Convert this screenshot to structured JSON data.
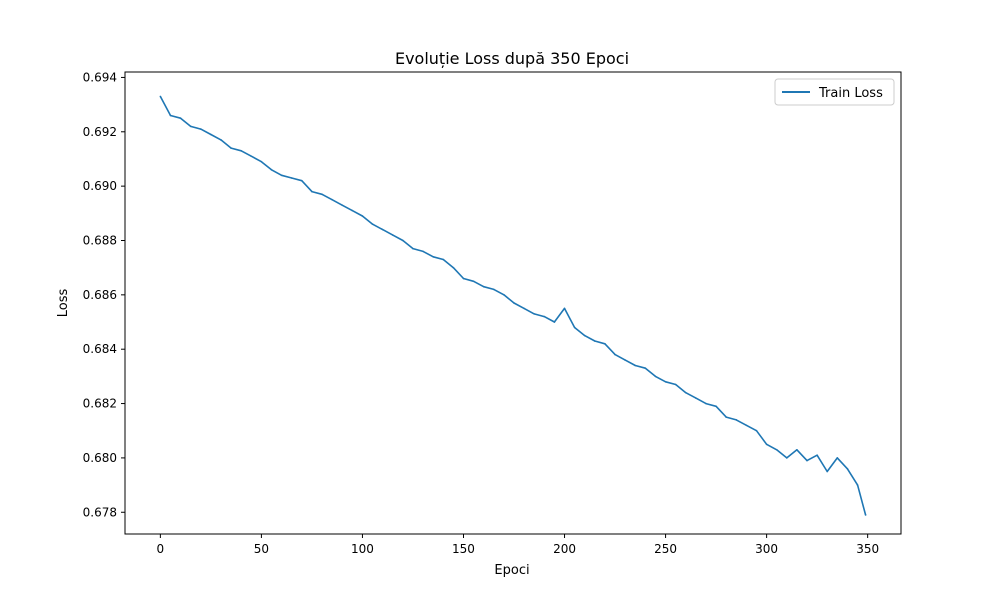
{
  "chart_data": {
    "type": "line",
    "title": "Evoluție Loss după 350 Epoci",
    "xlabel": "Epoci",
    "ylabel": "Loss",
    "xlim": [
      -17.5,
      366.5
    ],
    "ylim": [
      0.6772,
      0.6942
    ],
    "xticks": [
      0,
      50,
      100,
      150,
      200,
      250,
      300,
      350
    ],
    "yticks": [
      0.678,
      0.68,
      0.682,
      0.684,
      0.686,
      0.688,
      0.69,
      0.692,
      0.694
    ],
    "ytick_labels": [
      "0.678",
      "0.680",
      "0.682",
      "0.684",
      "0.686",
      "0.688",
      "0.690",
      "0.692",
      "0.694"
    ],
    "legend_position": "top-right",
    "grid": false,
    "series": [
      {
        "name": "Train Loss",
        "color": "#1f77b4",
        "x": [
          0,
          5,
          10,
          15,
          20,
          25,
          30,
          35,
          40,
          45,
          50,
          55,
          60,
          65,
          70,
          75,
          80,
          85,
          90,
          95,
          100,
          105,
          110,
          115,
          120,
          125,
          130,
          135,
          140,
          145,
          150,
          155,
          160,
          165,
          170,
          175,
          180,
          185,
          190,
          195,
          200,
          205,
          210,
          215,
          220,
          225,
          230,
          235,
          240,
          245,
          250,
          255,
          260,
          265,
          270,
          275,
          280,
          285,
          290,
          295,
          300,
          305,
          310,
          315,
          320,
          325,
          330,
          335,
          340,
          345,
          349
        ],
        "values": [
          0.6933,
          0.6926,
          0.6925,
          0.6922,
          0.6921,
          0.6919,
          0.6917,
          0.6914,
          0.6913,
          0.6911,
          0.6909,
          0.6906,
          0.6904,
          0.6903,
          0.6902,
          0.6898,
          0.6897,
          0.6895,
          0.6893,
          0.6891,
          0.6889,
          0.6886,
          0.6884,
          0.6882,
          0.688,
          0.6877,
          0.6876,
          0.6874,
          0.6873,
          0.687,
          0.6866,
          0.6865,
          0.6863,
          0.6862,
          0.686,
          0.6857,
          0.6855,
          0.6853,
          0.6852,
          0.685,
          0.6855,
          0.6848,
          0.6845,
          0.6843,
          0.6842,
          0.6838,
          0.6836,
          0.6834,
          0.6833,
          0.683,
          0.6828,
          0.6827,
          0.6824,
          0.6822,
          0.682,
          0.6819,
          0.6815,
          0.6814,
          0.6812,
          0.681,
          0.6805,
          0.6803,
          0.68,
          0.6803,
          0.6799,
          0.6801,
          0.6795,
          0.68,
          0.6796,
          0.679,
          0.6779
        ]
      }
    ]
  }
}
